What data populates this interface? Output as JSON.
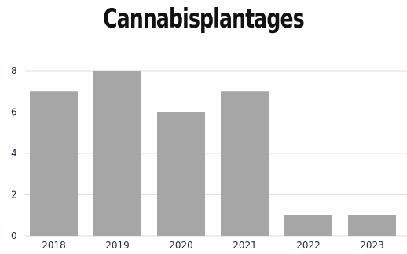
{
  "chart_data": {
    "type": "bar",
    "title": "Cannabisplantages",
    "categories": [
      "2018",
      "2019",
      "2020",
      "2021",
      "2022",
      "2023"
    ],
    "values": [
      7,
      8,
      6,
      7,
      1,
      1
    ],
    "ylim": [
      0,
      8
    ],
    "yticks": [
      "0",
      "2",
      "4",
      "6",
      "8"
    ],
    "grid": true,
    "colors": {
      "bar": "#a6a6a6",
      "grid": "#dddddd",
      "text": "#1f2d3d"
    }
  }
}
